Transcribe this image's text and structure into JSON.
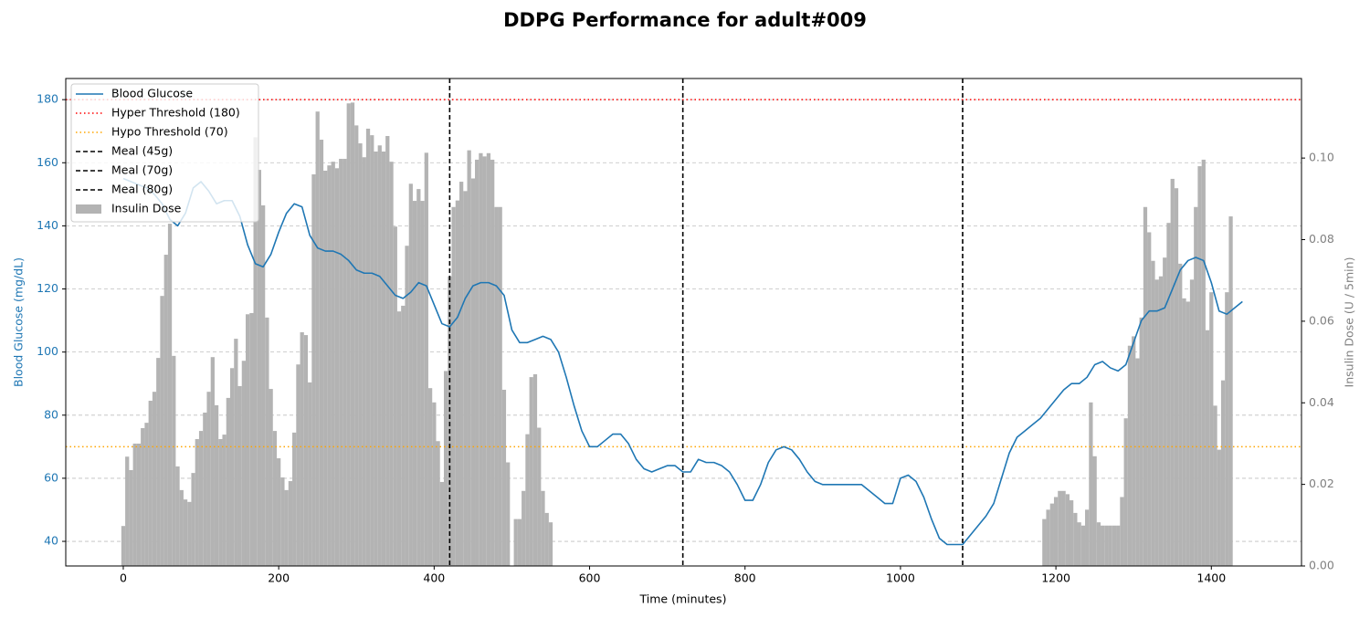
{
  "chart_data": {
    "type": "combo",
    "title": "DDPG Performance for adult#009",
    "xlabel": "Time (minutes)",
    "ylabel": "Blood Glucose (mg/dL)",
    "y2label": "Insulin Dose (U / 5min)",
    "xlim": [
      -74,
      1516
    ],
    "ylim": [
      32.2,
      186.7
    ],
    "y2lim": [
      0,
      0.1195
    ],
    "xticks": [
      0,
      200,
      400,
      600,
      800,
      1000,
      1200,
      1400
    ],
    "yticks": [
      40,
      60,
      80,
      100,
      120,
      140,
      160,
      180
    ],
    "y2ticks": [
      {
        "value": 0,
        "label": "0.00"
      },
      {
        "value": 0.02,
        "label": "0.02"
      },
      {
        "value": 0.04,
        "label": "0.04"
      },
      {
        "value": 0.06,
        "label": "0.06"
      },
      {
        "value": 0.08,
        "label": "0.08"
      },
      {
        "value": 0.1,
        "label": "0.10"
      }
    ],
    "grid": true,
    "legend": "upper left",
    "series": [
      {
        "name": "Blood Glucose",
        "type": "line",
        "color": "#1f77b4",
        "x": [
          0,
          10,
          20,
          30,
          40,
          50,
          60,
          70,
          80,
          90,
          100,
          110,
          120,
          130,
          140,
          150,
          160,
          170,
          180,
          190,
          200,
          210,
          220,
          230,
          240,
          250,
          260,
          270,
          280,
          290,
          300,
          310,
          320,
          330,
          340,
          350,
          360,
          370,
          380,
          390,
          400,
          410,
          420,
          430,
          440,
          450,
          460,
          470,
          480,
          490,
          500,
          510,
          520,
          530,
          540,
          550,
          560,
          570,
          580,
          590,
          600,
          610,
          620,
          630,
          640,
          650,
          660,
          670,
          680,
          690,
          700,
          710,
          720,
          730,
          740,
          750,
          760,
          770,
          780,
          790,
          800,
          810,
          820,
          830,
          840,
          850,
          860,
          870,
          880,
          890,
          900,
          910,
          920,
          930,
          940,
          950,
          960,
          970,
          980,
          990,
          1000,
          1010,
          1020,
          1030,
          1040,
          1050,
          1060,
          1070,
          1080,
          1090,
          1100,
          1110,
          1120,
          1130,
          1140,
          1150,
          1160,
          1170,
          1180,
          1190,
          1200,
          1210,
          1220,
          1230,
          1240,
          1250,
          1260,
          1270,
          1280,
          1290,
          1300,
          1310,
          1320,
          1330,
          1340,
          1350,
          1360,
          1370,
          1380,
          1390,
          1400,
          1410,
          1420,
          1430,
          1440
        ],
        "values": [
          155,
          154,
          153,
          152,
          150,
          147,
          142,
          140,
          144,
          152,
          154,
          151,
          147,
          148,
          148,
          143,
          134,
          128,
          127,
          131,
          138,
          144,
          147,
          146,
          137,
          133,
          132,
          132,
          131,
          129,
          126,
          125,
          125,
          124,
          121,
          118,
          117,
          119,
          122,
          121,
          115,
          109,
          108,
          111,
          117,
          121,
          122,
          122,
          121,
          118,
          107,
          103,
          103,
          104,
          105,
          104,
          100,
          92,
          83,
          75,
          70,
          70,
          72,
          74,
          74,
          71,
          66,
          63,
          62,
          63,
          64,
          64,
          62,
          62,
          66,
          65,
          65,
          64,
          62,
          58,
          53,
          53,
          58,
          65,
          69,
          70,
          69,
          66,
          62,
          59,
          58,
          58,
          58,
          58,
          58,
          58,
          56,
          54,
          52,
          52,
          60,
          61,
          59,
          54,
          47,
          41,
          39,
          39,
          39,
          42,
          45,
          48,
          52,
          60,
          68,
          73,
          75,
          77,
          79,
          82,
          85,
          88,
          90,
          90,
          92,
          96,
          97,
          95,
          94,
          96,
          103,
          110,
          113,
          113,
          114,
          120,
          126,
          129,
          130,
          129,
          122,
          113,
          112,
          114,
          116
        ]
      },
      {
        "name": "Insulin Dose",
        "type": "bar",
        "axis": "y2",
        "color": "#b3b3b3",
        "x": [
          0,
          5,
          10,
          15,
          20,
          25,
          30,
          35,
          40,
          45,
          50,
          55,
          60,
          65,
          70,
          75,
          80,
          85,
          90,
          95,
          100,
          105,
          110,
          115,
          120,
          125,
          130,
          135,
          140,
          145,
          150,
          155,
          160,
          165,
          170,
          175,
          180,
          185,
          190,
          195,
          200,
          205,
          210,
          215,
          220,
          225,
          230,
          235,
          240,
          245,
          250,
          255,
          260,
          265,
          270,
          275,
          280,
          285,
          290,
          295,
          300,
          305,
          310,
          315,
          320,
          325,
          330,
          335,
          340,
          345,
          350,
          355,
          360,
          365,
          370,
          375,
          380,
          385,
          390,
          395,
          400,
          405,
          410,
          415,
          420,
          425,
          430,
          435,
          440,
          445,
          450,
          455,
          460,
          465,
          470,
          475,
          480,
          485,
          490,
          495,
          505,
          510,
          515,
          520,
          525,
          530,
          535,
          540,
          545,
          550,
          1185,
          1190,
          1195,
          1200,
          1205,
          1210,
          1215,
          1220,
          1225,
          1230,
          1235,
          1240,
          1245,
          1250,
          1255,
          1260,
          1265,
          1270,
          1275,
          1280,
          1285,
          1290,
          1295,
          1300,
          1305,
          1310,
          1315,
          1320,
          1325,
          1330,
          1335,
          1340,
          1345,
          1350,
          1355,
          1360,
          1365,
          1370,
          1375,
          1380,
          1385,
          1390,
          1395,
          1400,
          1405,
          1410,
          1415,
          1420,
          1425
        ],
        "values": [
          0.0098,
          0.0268,
          0.0235,
          0.03,
          0.03,
          0.0338,
          0.0351,
          0.0405,
          0.0427,
          0.051,
          0.0662,
          0.0763,
          0.0839,
          0.0515,
          0.0244,
          0.0186,
          0.0163,
          0.0157,
          0.0228,
          0.0311,
          0.0331,
          0.0376,
          0.0427,
          0.0512,
          0.0394,
          0.0311,
          0.0322,
          0.0412,
          0.0485,
          0.0557,
          0.0441,
          0.0503,
          0.0617,
          0.062,
          0.1051,
          0.0971,
          0.0884,
          0.0609,
          0.0434,
          0.0331,
          0.0264,
          0.0217,
          0.0186,
          0.0208,
          0.0327,
          0.0494,
          0.0573,
          0.0566,
          0.045,
          0.096,
          0.1114,
          0.1045,
          0.0969,
          0.0982,
          0.0991,
          0.0975,
          0.0998,
          0.0998,
          0.1134,
          0.1136,
          0.108,
          0.1036,
          0.1002,
          0.1072,
          0.1056,
          0.1016,
          0.1031,
          0.1016,
          0.1054,
          0.0991,
          0.0832,
          0.0624,
          0.0638,
          0.0785,
          0.0937,
          0.0895,
          0.0924,
          0.0895,
          0.1013,
          0.0436,
          0.0401,
          0.0306,
          0.0206,
          0.0478,
          0.071,
          0.088,
          0.0896,
          0.0942,
          0.0919,
          0.1019,
          0.095,
          0.0996,
          0.1012,
          0.1004,
          0.1012,
          0.0996,
          0.088,
          0.088,
          0.0432,
          0.0254,
          0.0115,
          0.0115,
          0.0184,
          0.0323,
          0.0463,
          0.047,
          0.0339,
          0.0184,
          0.013,
          0.0107,
          0.0115,
          0.0138,
          0.0153,
          0.0169,
          0.0184,
          0.0184,
          0.0176,
          0.0161,
          0.013,
          0.0107,
          0.0099,
          0.0138,
          0.0401,
          0.0269,
          0.0107,
          0.0099,
          0.0099,
          0.0099,
          0.0099,
          0.0099,
          0.0169,
          0.0362,
          0.054,
          0.0563,
          0.0509,
          0.0609,
          0.088,
          0.0818,
          0.0748,
          0.0702,
          0.071,
          0.0756,
          0.0841,
          0.0949,
          0.0926,
          0.0741,
          0.0656,
          0.0648,
          0.0702,
          0.088,
          0.098,
          0.0996,
          0.0578,
          0.0671,
          0.0393,
          0.0285,
          0.0455,
          0.0671,
          0.0857
        ]
      }
    ],
    "hlines": [
      {
        "name": "Hyper Threshold (180)",
        "value": 180,
        "color": "red"
      },
      {
        "name": "Hypo Threshold (70)",
        "value": 70,
        "color": "orange"
      }
    ],
    "vlines": [
      {
        "name": "Meal (45g)",
        "value": 420,
        "color": "black"
      },
      {
        "name": "Meal (70g)",
        "value": 720,
        "color": "black"
      },
      {
        "name": "Meal (80g)",
        "value": 1080,
        "color": "black"
      }
    ]
  }
}
